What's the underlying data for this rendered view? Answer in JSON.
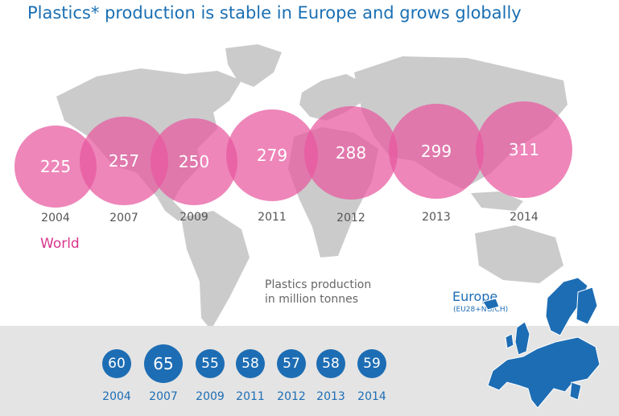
{
  "title": "Plastics* production is stable in Europe and grows globally",
  "world_label": "World",
  "unit_line1": "Plastics production",
  "unit_line2": "in million tonnes",
  "europe_label": "Europe",
  "europe_sub": "(EU28+NO/CH)",
  "colors": {
    "world": "#e858a0",
    "europe": "#1d6db4",
    "title": "#1a6fb3",
    "map": "#c8c8c8"
  },
  "chart_data": [
    {
      "type": "bubble",
      "series": [
        {
          "name": "World",
          "values": [
            225,
            257,
            250,
            279,
            288,
            299,
            311
          ]
        }
      ],
      "categories": [
        "2004",
        "2007",
        "2009",
        "2011",
        "2012",
        "2013",
        "2014"
      ],
      "ylabel": "Plastics production in million tonnes"
    },
    {
      "type": "bubble",
      "series": [
        {
          "name": "Europe",
          "values": [
            60,
            65,
            55,
            58,
            57,
            58,
            59
          ]
        }
      ],
      "categories": [
        "2004",
        "2007",
        "2009",
        "2011",
        "2012",
        "2013",
        "2014"
      ],
      "ylabel": "Plastics production in million tonnes"
    }
  ]
}
